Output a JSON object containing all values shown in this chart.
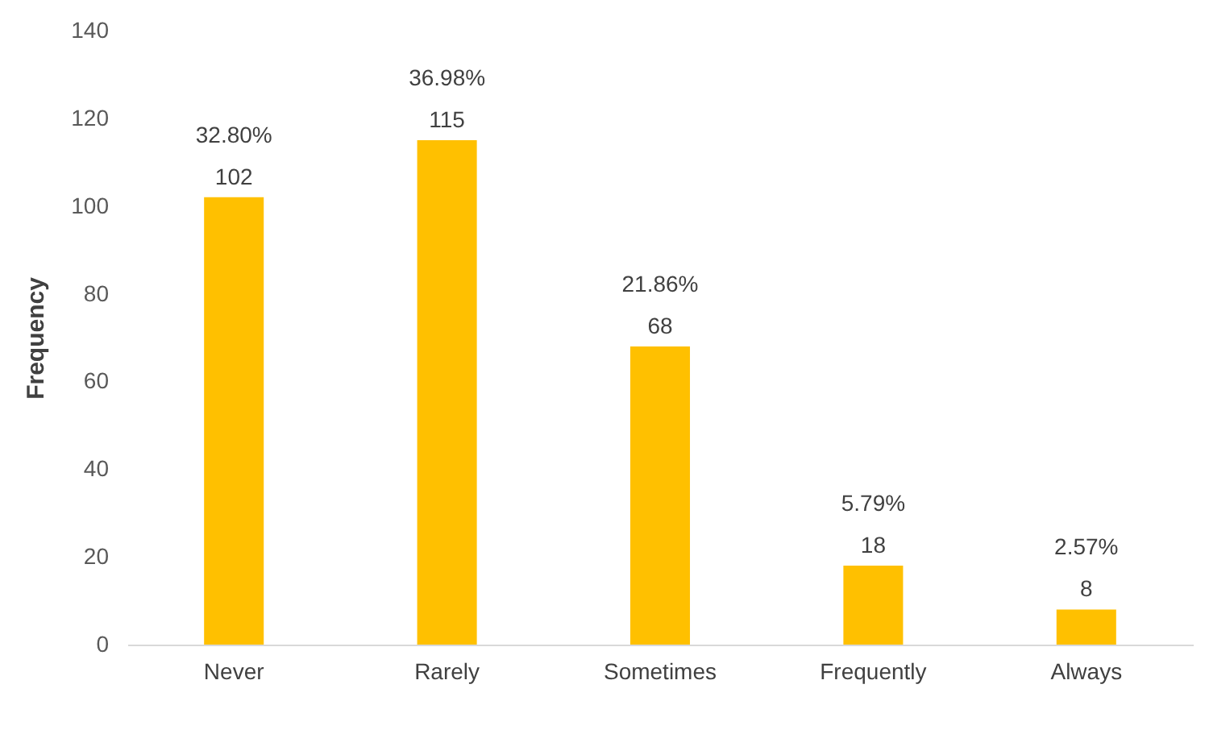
{
  "chart_data": {
    "type": "bar",
    "ylabel": "Frequency",
    "categories": [
      "Never",
      "Rarely",
      "Sometimes",
      "Frequently",
      "Always"
    ],
    "values": [
      102,
      115,
      68,
      18,
      8
    ],
    "color": "#ffc000",
    "ylim": [
      0,
      140
    ],
    "yticks": [
      0,
      20,
      40,
      60,
      80,
      100,
      120,
      140
    ],
    "grid": false,
    "data_labels": true,
    "annotations": [
      {
        "text": "32.80%",
        "x": "Never",
        "y": 102
      },
      {
        "text": "36.98%",
        "x": "Rarely",
        "y": 115
      },
      {
        "text": "21.86%",
        "x": "Sometimes",
        "y": 68
      },
      {
        "text": "5.79%",
        "x": "Frequently",
        "y": 18
      },
      {
        "text": "2.57%",
        "x": "Always",
        "y": 8
      }
    ]
  }
}
